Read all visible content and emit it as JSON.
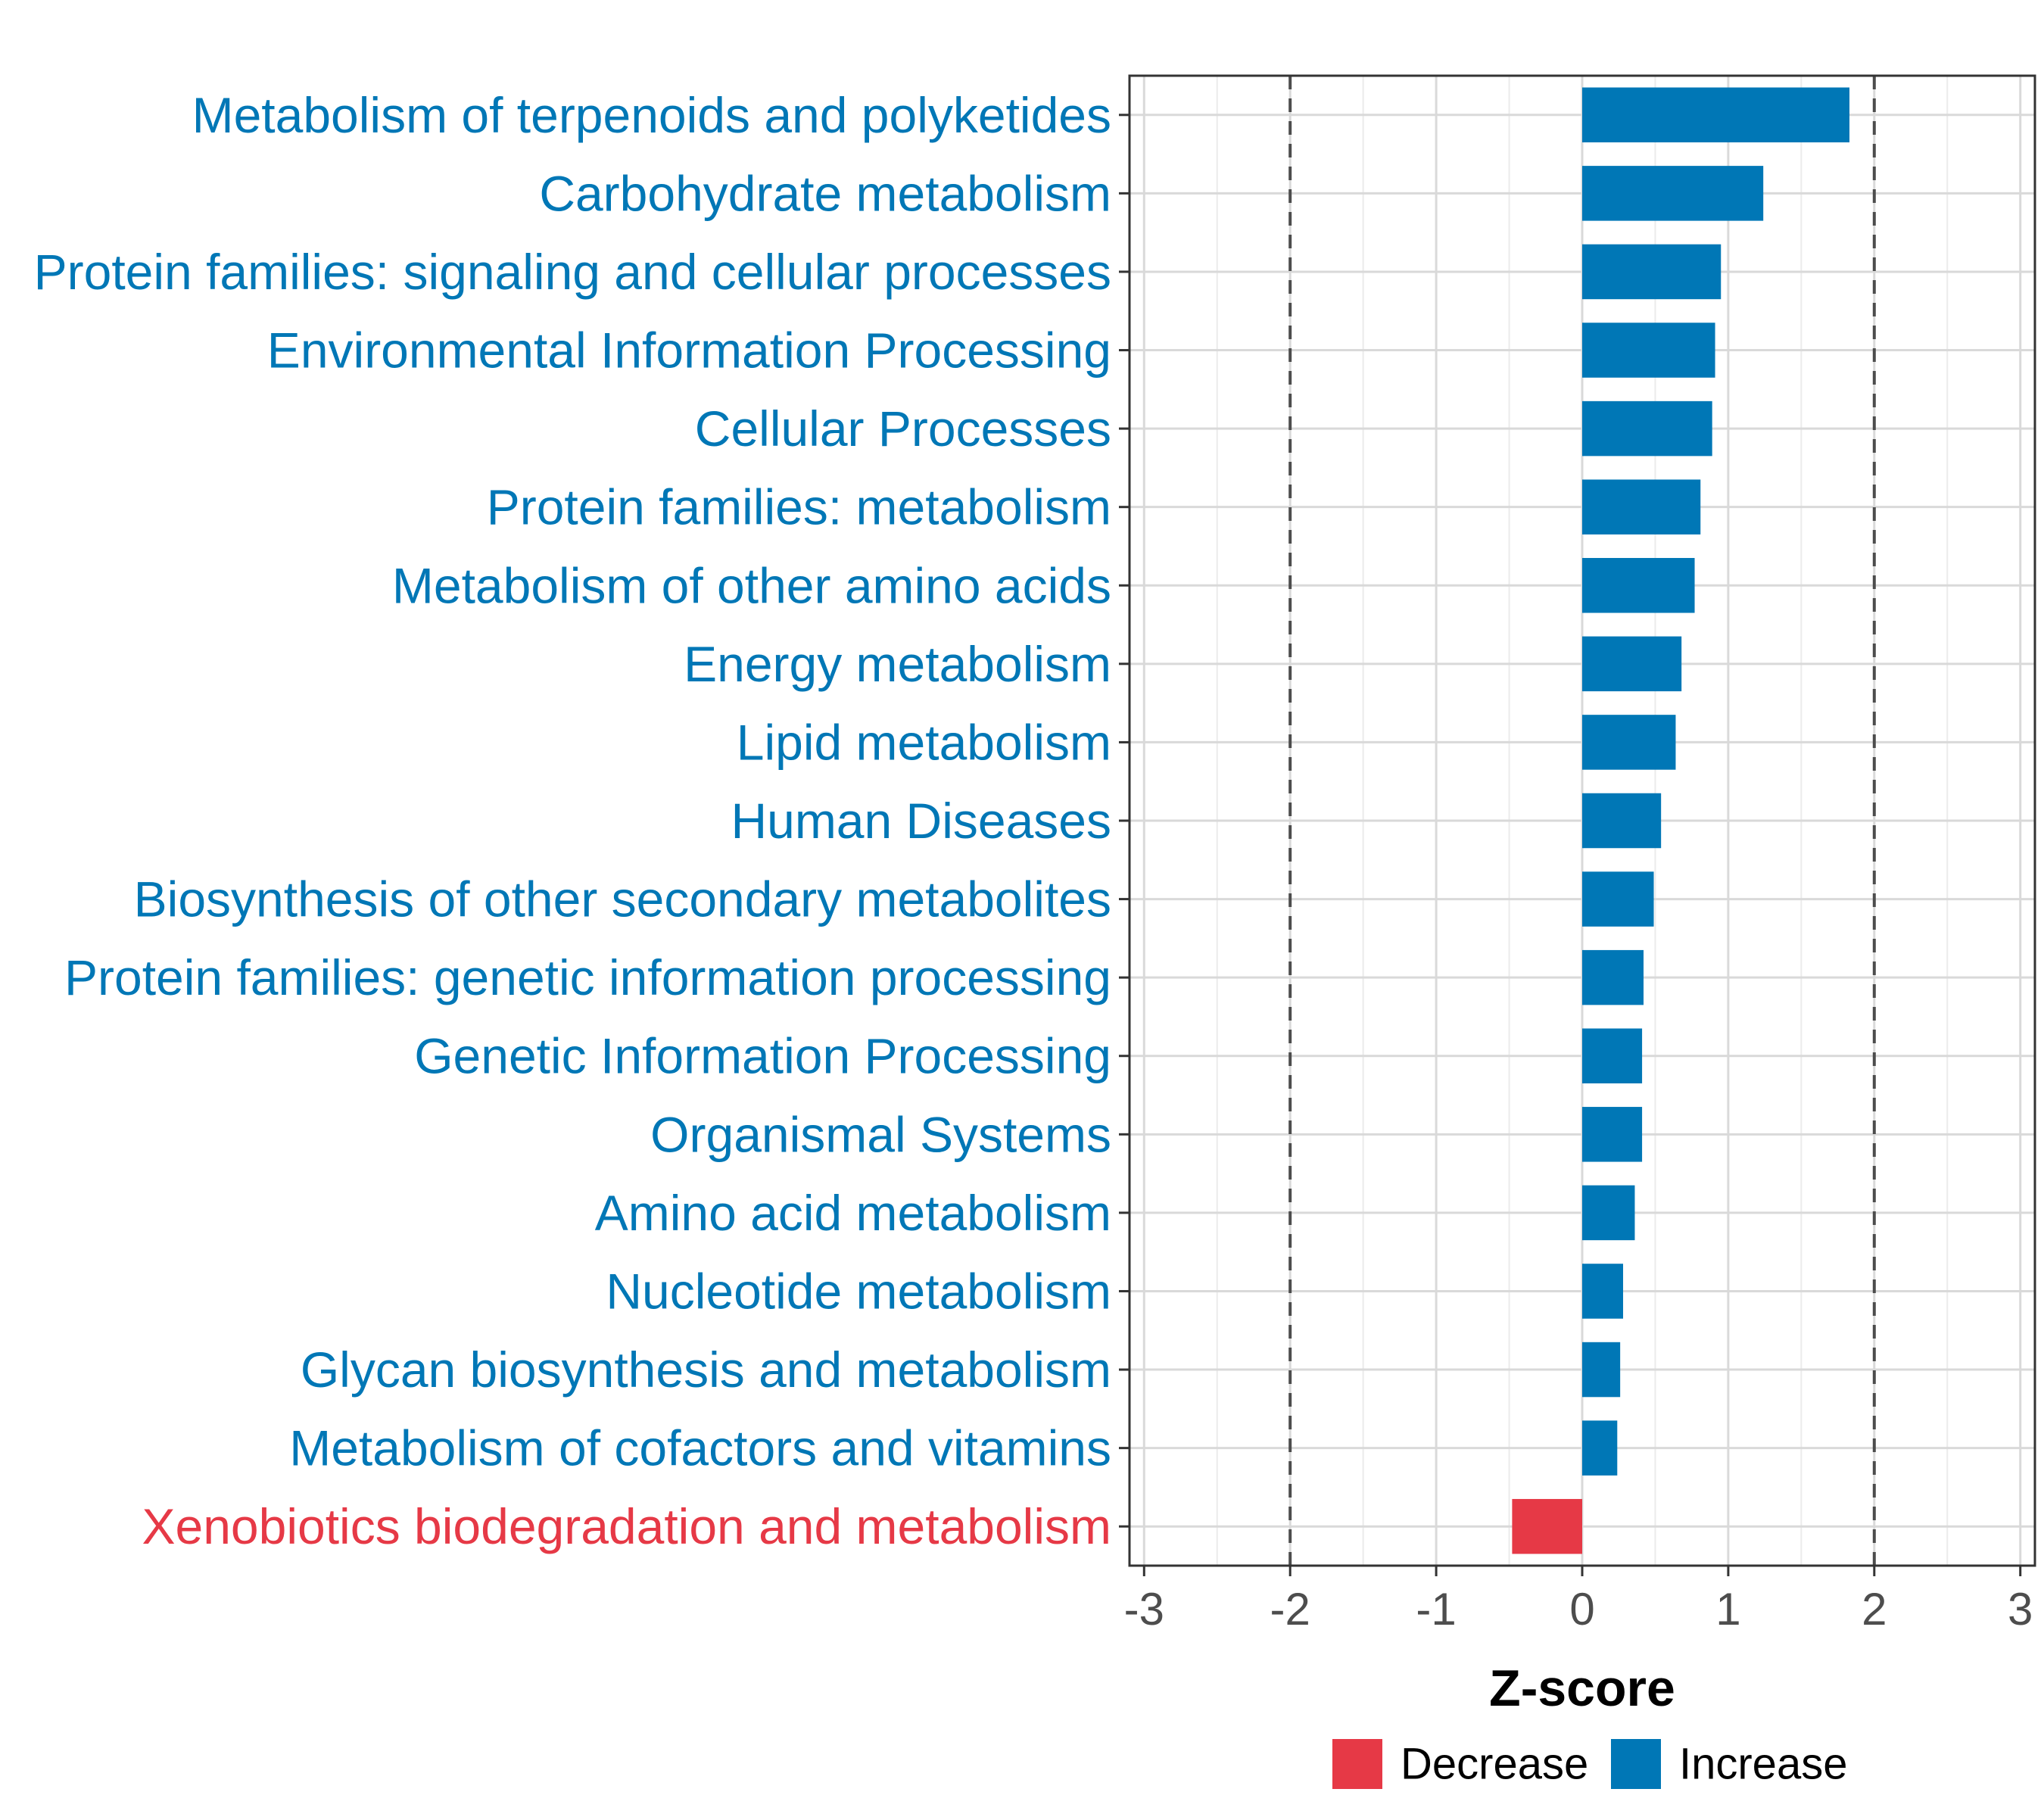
{
  "chart_data": {
    "type": "bar",
    "orientation": "horizontal",
    "xlabel": "Z-score",
    "xlim": [
      -3.1,
      3.1
    ],
    "xticks": [
      -3,
      -2,
      -1,
      0,
      1,
      2,
      3
    ],
    "xtick_labels": [
      "-3",
      "-2",
      "-1",
      "0",
      "1",
      "2",
      "3"
    ],
    "reference_lines": [
      -2,
      2
    ],
    "grid": true,
    "legend_position": "bottom",
    "categories": [
      "Metabolism of terpenoids and polyketides",
      "Carbohydrate metabolism",
      "Protein families: signaling and cellular processes",
      "Environmental Information Processing",
      "Cellular Processes",
      "Protein families: metabolism",
      "Metabolism of other amino acids",
      "Energy metabolism",
      "Lipid metabolism",
      "Human Diseases",
      "Biosynthesis of other secondary metabolites",
      "Protein families: genetic information processing",
      "Genetic Information Processing",
      "Organismal Systems",
      "Amino acid metabolism",
      "Nucleotide metabolism",
      "Glycan biosynthesis and metabolism",
      "Metabolism of cofactors and vitamins",
      "Xenobiotics biodegradation and metabolism"
    ],
    "values": [
      1.83,
      1.24,
      0.95,
      0.91,
      0.89,
      0.81,
      0.77,
      0.68,
      0.64,
      0.54,
      0.49,
      0.42,
      0.41,
      0.41,
      0.36,
      0.28,
      0.26,
      0.24,
      -0.48
    ],
    "groups": [
      "Increase",
      "Increase",
      "Increase",
      "Increase",
      "Increase",
      "Increase",
      "Increase",
      "Increase",
      "Increase",
      "Increase",
      "Increase",
      "Increase",
      "Increase",
      "Increase",
      "Increase",
      "Increase",
      "Increase",
      "Increase",
      "Decrease"
    ],
    "legend": [
      {
        "label": "Decrease",
        "color": "#e63946"
      },
      {
        "label": "Increase",
        "color": "#0077b6"
      }
    ]
  }
}
